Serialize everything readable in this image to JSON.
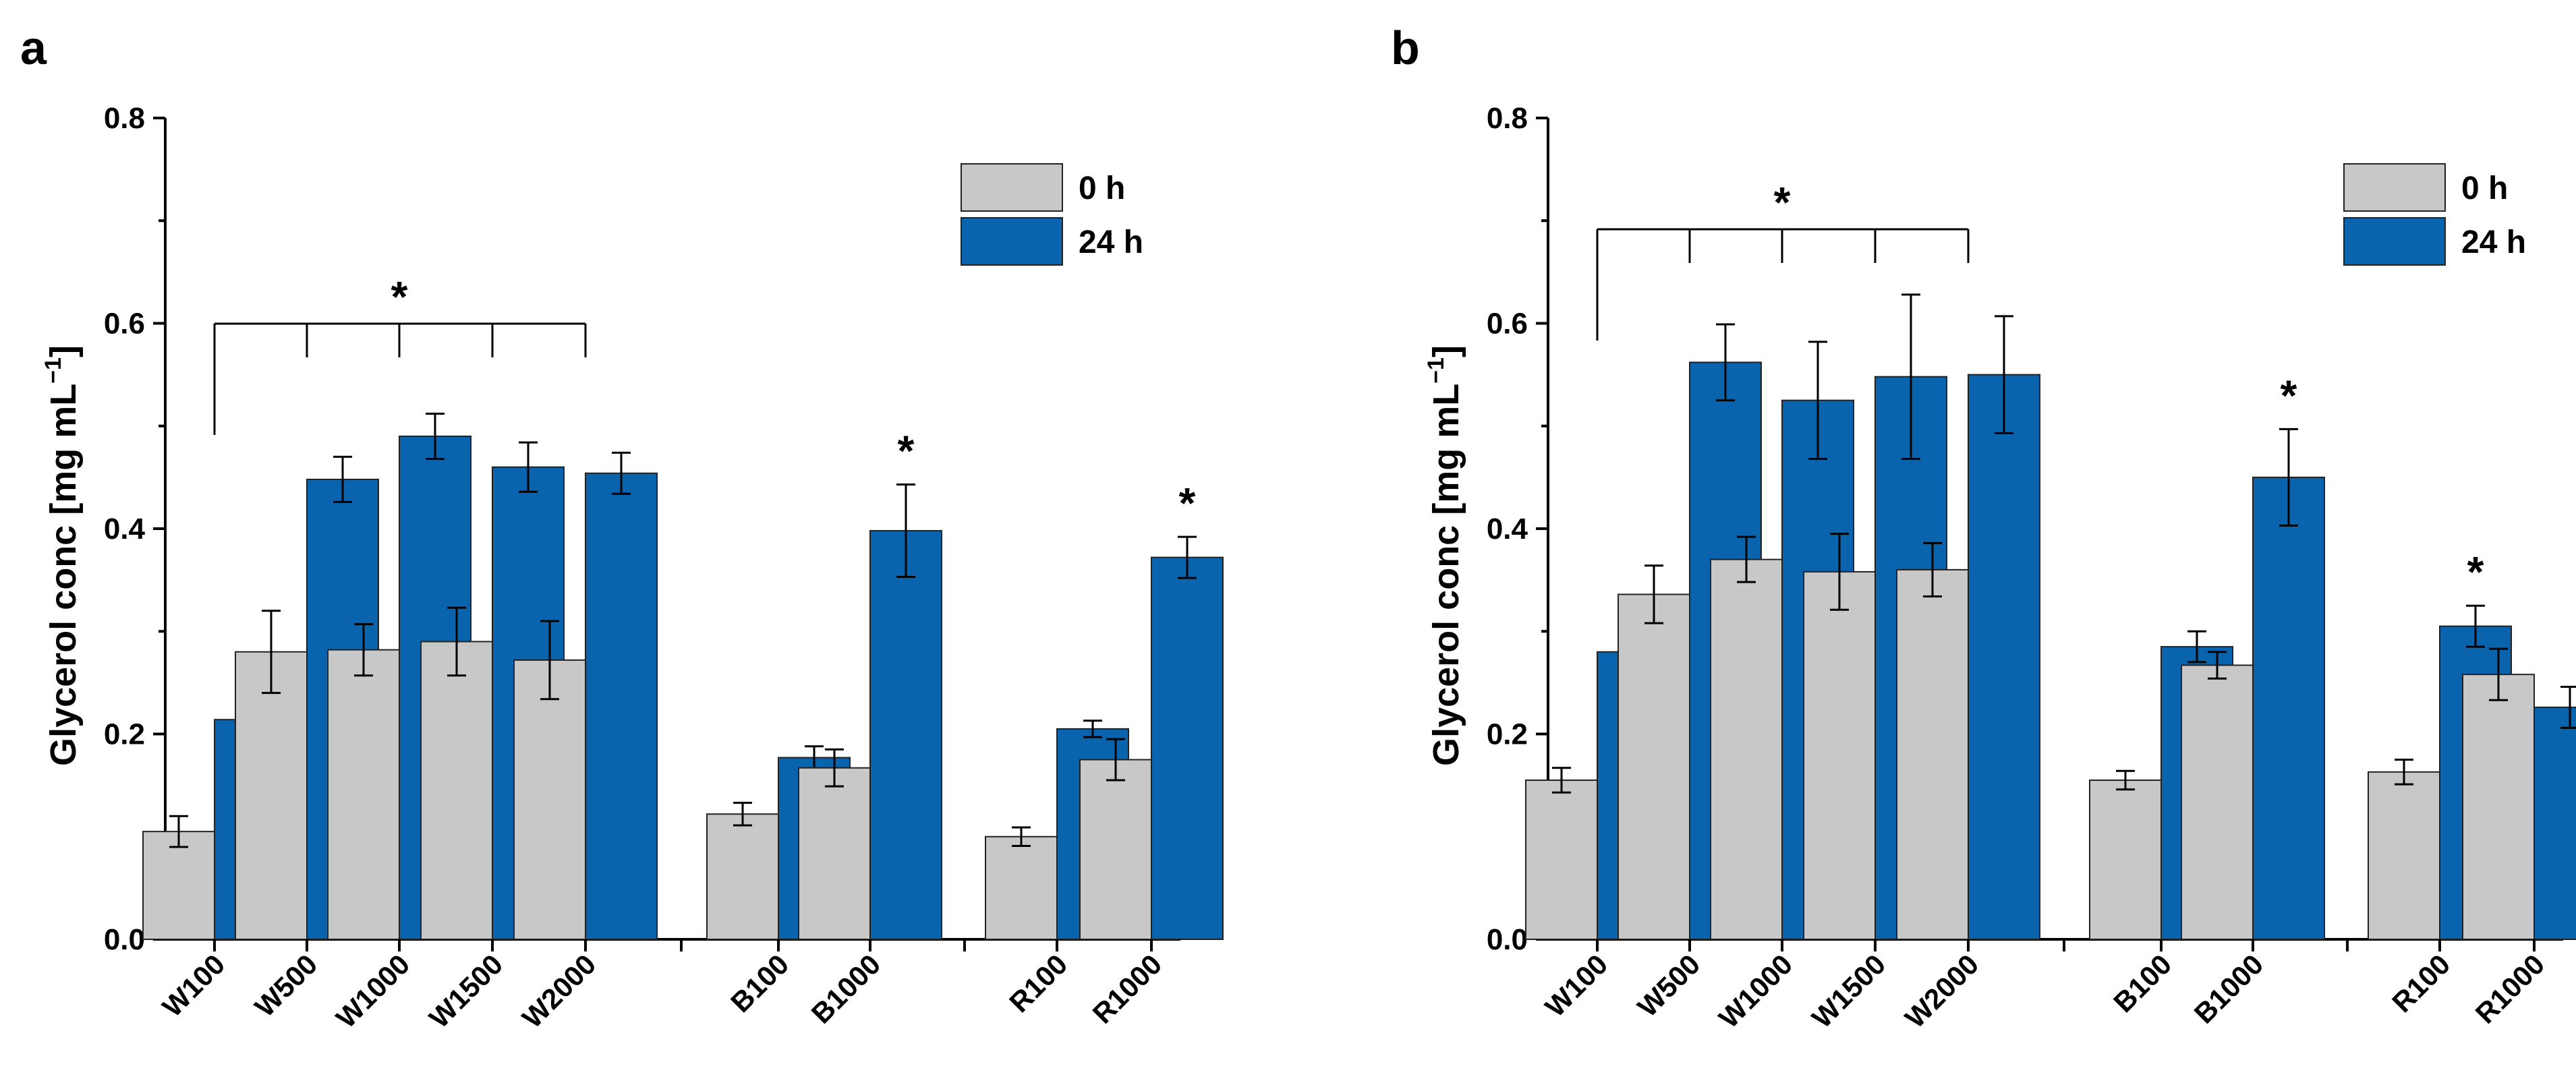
{
  "chart_data": [
    {
      "type": "bar",
      "panel_label": "a",
      "ylabel": "Glycerol conc [mg mL",
      "ylabel_sup": "−1",
      "ylabel_close": "]",
      "ylim": [
        0,
        0.8
      ],
      "yticks": [
        "0.0",
        "0.2",
        "0.4",
        "0.6",
        "0.8"
      ],
      "yticks_values": [
        0,
        0.2,
        0.4,
        0.6,
        0.8
      ],
      "categories": [
        "W100",
        "W500",
        "W1000",
        "W1500",
        "W2000",
        "B100",
        "B1000",
        "R100",
        "R1000"
      ],
      "groups": [
        [
          "W100",
          "W500",
          "W1000",
          "W1500",
          "W2000"
        ],
        [
          "B100",
          "B1000"
        ],
        [
          "R100",
          "R1000"
        ]
      ],
      "series": [
        {
          "name": "0 h",
          "color": "#c8c8c8",
          "values": [
            0.105,
            0.28,
            0.282,
            0.29,
            0.272,
            0.122,
            0.167,
            0.1,
            0.175
          ],
          "errors": [
            0.015,
            0.04,
            0.025,
            0.033,
            0.038,
            0.011,
            0.018,
            0.009,
            0.02
          ]
        },
        {
          "name": "24 h",
          "color": "#0a63ad",
          "values": [
            0.214,
            0.448,
            0.49,
            0.46,
            0.454,
            0.177,
            0.398,
            0.205,
            0.372
          ],
          "errors": [
            0.022,
            0.022,
            0.022,
            0.024,
            0.02,
            0.011,
            0.045,
            0.008,
            0.02
          ]
        }
      ],
      "significance": {
        "bracket": {
          "from": 0,
          "to": 4,
          "label": "*"
        },
        "stars": [
          {
            "category": 6,
            "label": "*"
          },
          {
            "category": 8,
            "label": "*"
          }
        ]
      },
      "legend": "top-right",
      "grid": false
    },
    {
      "type": "bar",
      "panel_label": "b",
      "ylabel": "Glycerol conc [mg mL",
      "ylabel_sup": "−1",
      "ylabel_close": "]",
      "ylim": [
        0,
        0.8
      ],
      "yticks": [
        "0.0",
        "0.2",
        "0.4",
        "0.6",
        "0.8"
      ],
      "yticks_values": [
        0,
        0.2,
        0.4,
        0.6,
        0.8
      ],
      "categories": [
        "W100",
        "W500",
        "W1000",
        "W1500",
        "W2000",
        "B100",
        "B1000",
        "R100",
        "R1000"
      ],
      "groups": [
        [
          "W100",
          "W500",
          "W1000",
          "W1500",
          "W2000"
        ],
        [
          "B100",
          "B1000"
        ],
        [
          "R100",
          "R1000"
        ]
      ],
      "series": [
        {
          "name": "0 h",
          "color": "#c8c8c8",
          "values": [
            0.155,
            0.336,
            0.37,
            0.358,
            0.36,
            0.155,
            0.267,
            0.163,
            0.258
          ],
          "errors": [
            0.012,
            0.028,
            0.022,
            0.037,
            0.026,
            0.009,
            0.013,
            0.012,
            0.025
          ]
        },
        {
          "name": "24 h",
          "color": "#0a63ad",
          "values": [
            0.28,
            0.562,
            0.525,
            0.548,
            0.55,
            0.285,
            0.45,
            0.305,
            0.226
          ],
          "errors": [
            0.016,
            0.037,
            0.057,
            0.08,
            0.057,
            0.015,
            0.047,
            0.02,
            0.02
          ]
        }
      ],
      "significance": {
        "bracket": {
          "from": 0,
          "to": 4,
          "label": "*"
        },
        "stars": [
          {
            "category": 6,
            "label": "*"
          },
          {
            "category": 7,
            "label": "*"
          }
        ]
      },
      "legend": "top-right",
      "grid": false
    }
  ]
}
